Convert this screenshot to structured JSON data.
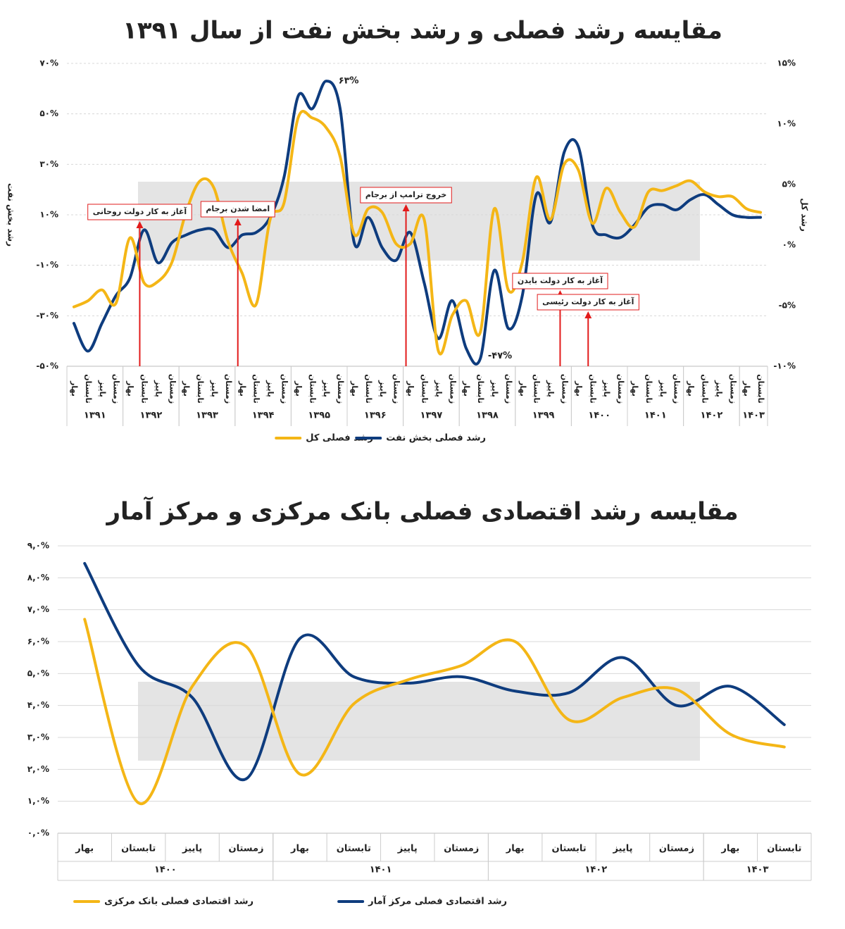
{
  "chart_data": [
    {
      "type": "line",
      "title": "مقایسه رشد فصلی و رشد بخش نفت از سال ۱۳۹۱",
      "y_label": "رشد بخش نفت",
      "y2_label": "رشد کل",
      "categories": [
        "بهار",
        "تابستان",
        "پاییز",
        "زمستان",
        "بهار",
        "تابستان",
        "پاییز",
        "زمستان",
        "بهار",
        "تابستان",
        "پاییز",
        "زمستان",
        "بهار",
        "تابستان",
        "پاییز",
        "زمستان",
        "بهار",
        "تابستان",
        "پاییز",
        "زمستان",
        "بهار",
        "تابستان",
        "پاییز",
        "زمستان",
        "بهار",
        "تابستان",
        "پاییز",
        "زمستان",
        "بهار",
        "تابستان",
        "پاییز",
        "زمستان",
        "بهار",
        "تابستان",
        "پاییز",
        "زمستان",
        "بهار",
        "تابستان",
        "پاییز",
        "زمستان",
        "بهار",
        "تابستان",
        "پاییز",
        "زمستان",
        "بهار",
        "تابستان",
        "پاییز",
        "زمستان",
        "بهار",
        "تابستان"
      ],
      "year_groups": [
        "۱۳۹۱",
        "۱۳۹۲",
        "۱۳۹۳",
        "۱۳۹۴",
        "۱۳۹۵",
        "۱۳۹۶",
        "۱۳۹۷",
        "۱۳۹۸",
        "۱۳۹۹",
        "۱۴۰۰",
        "۱۴۰۱",
        "۱۴۰۲",
        "۱۴۰۳"
      ],
      "series": [
        {
          "name": "رشد فصلی بخش نفت",
          "color": "#0e3c7e",
          "values": [
            -33,
            -44,
            -33,
            -22,
            -15,
            4,
            -9,
            -1,
            2,
            4,
            4,
            -3,
            2,
            3,
            9,
            25,
            57,
            52,
            63,
            52,
            -1,
            9,
            -3,
            -8,
            3,
            -17,
            -39,
            -24,
            -43,
            -47,
            -12,
            -35,
            -22,
            18,
            7,
            35,
            37,
            6,
            2,
            1,
            6,
            13,
            14,
            12,
            16,
            18,
            14,
            10,
            9,
            9
          ]
        },
        {
          "name": "رشد فصلی کل",
          "color": "#f4b616",
          "axis": "y2",
          "values": [
            -5.1,
            -4.6,
            -3.7,
            -4.8,
            0.6,
            -3.1,
            -3,
            -1.4,
            2.7,
            5.3,
            4.7,
            0.3,
            -2.3,
            -4.9,
            2.1,
            3.5,
            10.5,
            10.5,
            9.7,
            7.3,
            0.9,
            3,
            2.7,
            0.1,
            0.1,
            2.1,
            -8.7,
            -5.8,
            -4.6,
            -7.2,
            3,
            -3.7,
            -1.4,
            5.6,
            2.1,
            6.7,
            6.2,
            1.8,
            4.7,
            2.7,
            1.5,
            4.4,
            4.5,
            4.9,
            5.3,
            4.4,
            4,
            4,
            3,
            2.7
          ]
        }
      ],
      "ylim": [
        -50,
        70
      ],
      "yticks": [
        {
          "value": 70,
          "label": "۷۰%"
        },
        {
          "value": 50,
          "label": "۵۰%"
        },
        {
          "value": 30,
          "label": "۳۰%"
        },
        {
          "value": 10,
          "label": "۱۰%"
        },
        {
          "value": -10,
          "label": "-۱۰%"
        },
        {
          "value": -30,
          "label": "-۳۰%"
        },
        {
          "value": -50,
          "label": "-۵۰%"
        }
      ],
      "y2lim": [
        -10,
        15
      ],
      "y2ticks": [
        {
          "value": 15,
          "label": "۱۵%"
        },
        {
          "value": 10,
          "label": "۱۰%"
        },
        {
          "value": 5,
          "label": "۵%"
        },
        {
          "value": 0,
          "label": "۰%"
        },
        {
          "value": -5,
          "label": "-۵%"
        },
        {
          "value": -10,
          "label": "-۱۰%"
        }
      ],
      "grid": true,
      "annotations": [
        "۶۳%",
        "-۴۷%",
        "آغاز به کار دولت روحانی",
        "امضا شدن برجام",
        "خروج ترامپ از برجام",
        "آغاز به کار دولت بایدن",
        "آغاز به کار دولت رئیسی"
      ]
    },
    {
      "type": "line",
      "title": "مقایسه رشد اقتصادی فصلی بانک مرکزی و مرکز آمار",
      "categories": [
        "بهار",
        "تابستان",
        "پاییز",
        "زمستان",
        "بهار",
        "تابستان",
        "پاییز",
        "زمستان",
        "بهار",
        "تابستان",
        "پاییز",
        "زمستان",
        "بهار",
        "تابستان"
      ],
      "year_groups": [
        "۱۴۰۰",
        "۱۴۰۱",
        "۱۴۰۲",
        "۱۴۰۳"
      ],
      "series": [
        {
          "name": "رشد اقتصادی فصلی مرکز آمار",
          "color": "#0e3c7e",
          "values": [
            8.45,
            5.25,
            4.25,
            1.7,
            6.1,
            4.9,
            4.7,
            4.9,
            4.45,
            4.4,
            5.5,
            4.0,
            4.6,
            3.4
          ]
        },
        {
          "name": "رشد اقتصادی فصلی بانک مرکزی",
          "color": "#f4b616",
          "values": [
            6.7,
            0.95,
            4.6,
            5.85,
            1.85,
            4.05,
            4.8,
            5.25,
            6.0,
            3.55,
            4.25,
            4.5,
            3.1,
            2.7
          ]
        }
      ],
      "ylim": [
        0,
        9
      ],
      "yticks": [
        {
          "value": 0,
          "label": "۰,۰%"
        },
        {
          "value": 1,
          "label": "۱,۰%"
        },
        {
          "value": 2,
          "label": "۲,۰%"
        },
        {
          "value": 3,
          "label": "۳,۰%"
        },
        {
          "value": 4,
          "label": "۴,۰%"
        },
        {
          "value": 5,
          "label": "۵,۰%"
        },
        {
          "value": 6,
          "label": "۶,۰%"
        },
        {
          "value": 7,
          "label": "۷,۰%"
        },
        {
          "value": 8,
          "label": "۸,۰%"
        },
        {
          "value": 9,
          "label": "۹,۰%"
        }
      ],
      "grid": true
    }
  ]
}
